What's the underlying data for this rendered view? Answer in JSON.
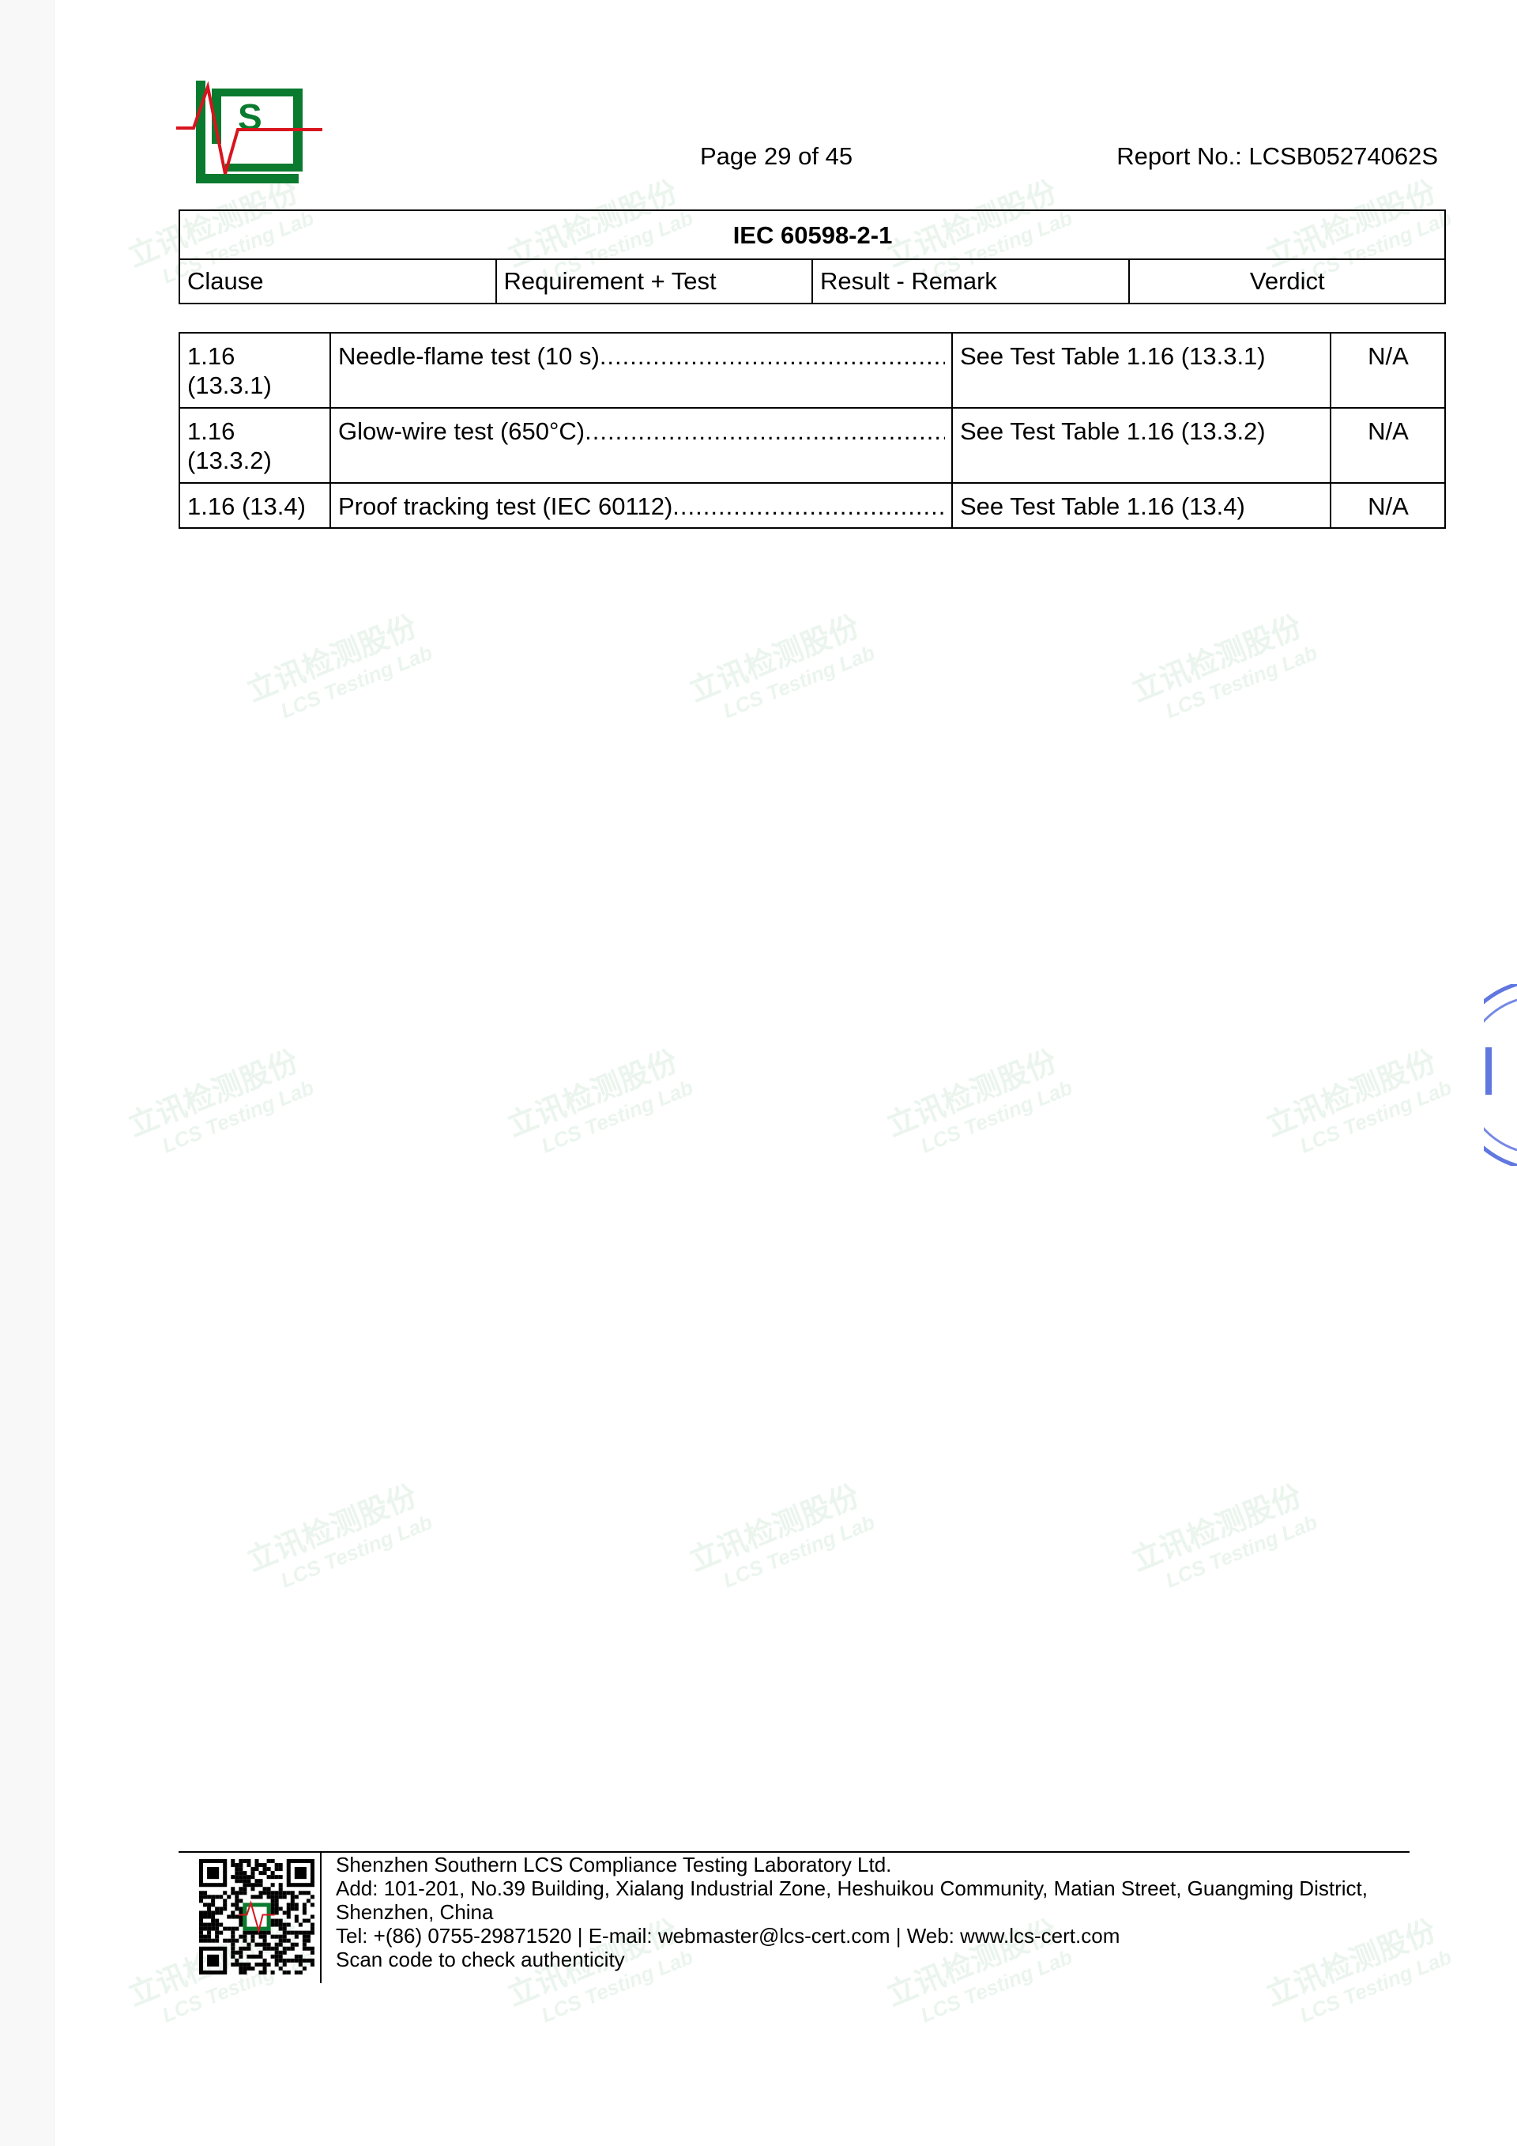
{
  "header": {
    "logo_text": "LCS",
    "page_label": "Page 29 of 45",
    "report_no": "Report No.: LCSB05274062S"
  },
  "table_header": {
    "title": "IEC 60598-2-1",
    "columns": [
      "Clause",
      "Requirement + Test",
      "Result - Remark",
      "Verdict"
    ]
  },
  "rows": [
    {
      "clause": "1.16 (13.3.1)",
      "requirement": "Needle-flame test (10 s)",
      "result": "See Test Table 1.16 (13.3.1)",
      "verdict": "N/A"
    },
    {
      "clause": "1.16 (13.3.2)",
      "requirement": "Glow-wire test (650°C)",
      "result": "See Test Table 1.16 (13.3.2)",
      "verdict": "N/A"
    },
    {
      "clause": "1.16 (13.4)",
      "requirement": "Proof tracking test (IEC 60112)",
      "result": "See Test Table 1.16 (13.4)",
      "verdict": "N/A"
    }
  ],
  "footer": {
    "company": "Shenzhen Southern LCS Compliance Testing Laboratory Ltd.",
    "address_line1": "Add: 101-201, No.39 Building, Xialang Industrial Zone, Heshuikou Community, Matian Street, Guangming District,",
    "address_line2": "Shenzhen, China",
    "contact": "Tel: +(86) 0755-29871520 | E-mail: webmaster@lcs-cert.com | Web: www.lcs-cert.com",
    "scan_note": "Scan code to check authenticity"
  },
  "watermark": {
    "cn": "立讯检测股份",
    "en": "LCS Testing Lab"
  },
  "colors": {
    "logo_green": "#0a7a2e",
    "logo_red": "#d8141e",
    "stamp_blue": "#3a55d8"
  }
}
